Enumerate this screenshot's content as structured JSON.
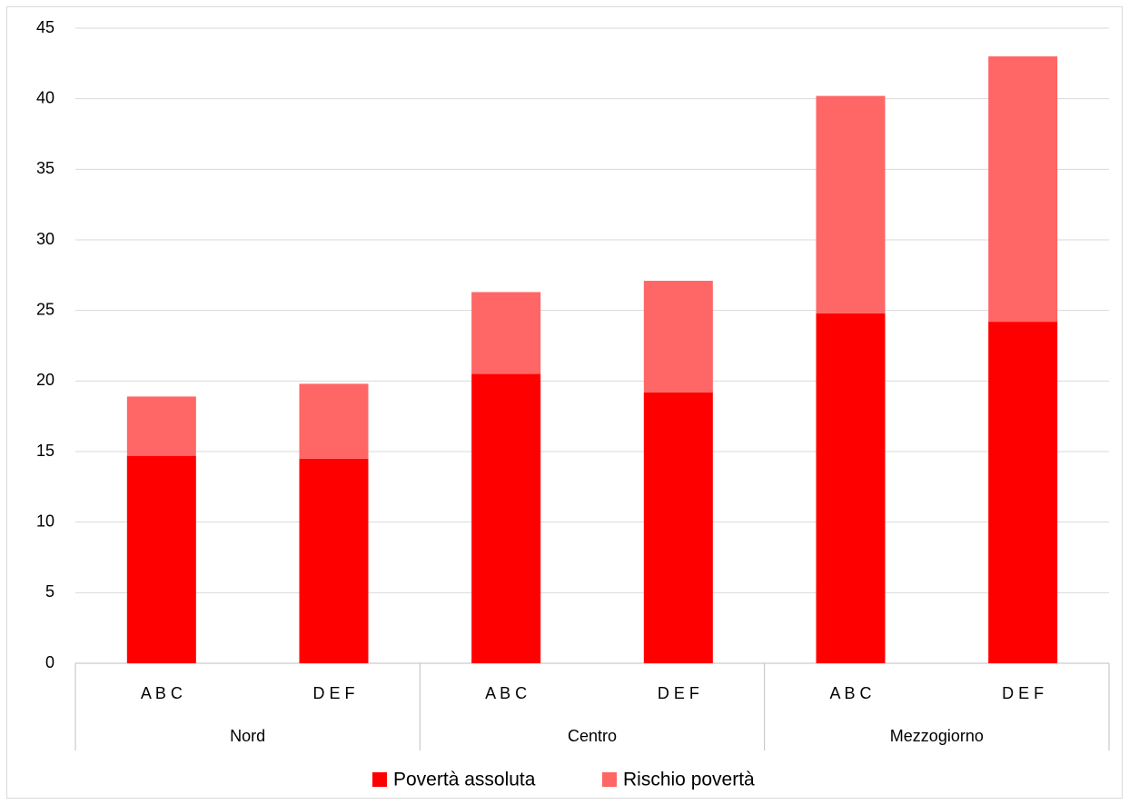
{
  "chart_data": {
    "type": "bar",
    "stacked": true,
    "categories": [
      "A B C",
      "D E F",
      "A B C",
      "D E F",
      "A B C",
      "D E F"
    ],
    "groups": [
      {
        "label": "Nord",
        "span": 2
      },
      {
        "label": "Centro",
        "span": 2
      },
      {
        "label": "Mezzogiorno",
        "span": 2
      }
    ],
    "series": [
      {
        "name": "Povertà assoluta",
        "color": "#ff0000",
        "values": [
          14.7,
          14.5,
          20.5,
          19.2,
          24.8,
          24.2
        ]
      },
      {
        "name": "Rischio povertà",
        "color": "#ff6666",
        "values": [
          4.2,
          5.3,
          5.8,
          7.9,
          15.4,
          18.8
        ]
      }
    ],
    "ylim": [
      0,
      45
    ],
    "yticks": [
      "0",
      "5",
      "10",
      "15",
      "20",
      "25",
      "30",
      "35",
      "40",
      "45"
    ],
    "grid": true,
    "legend": "bottom",
    "xlabel": "",
    "ylabel": "",
    "title": ""
  }
}
